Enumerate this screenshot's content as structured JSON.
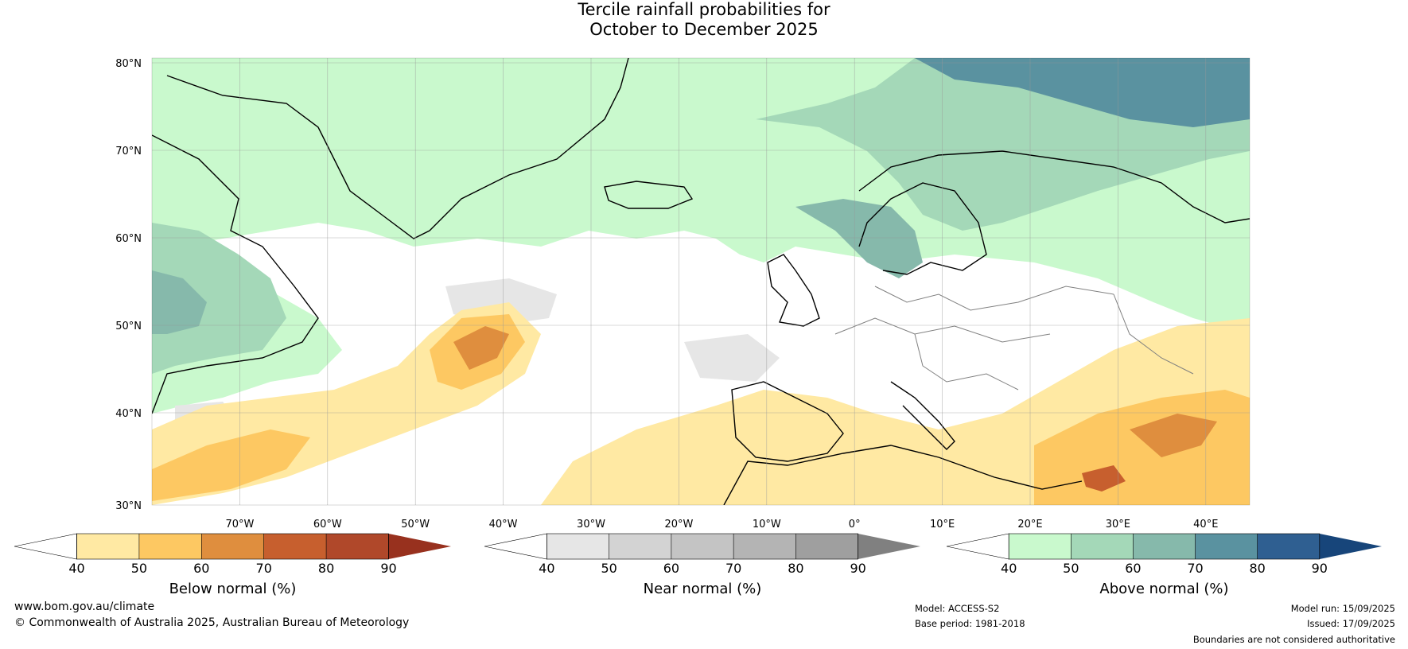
{
  "title": {
    "line1": "Tercile rainfall probabilities for",
    "line2": "October to December 2025"
  },
  "map": {
    "lat_labels": [
      "80°N",
      "70°N",
      "60°N",
      "50°N",
      "40°N",
      "30°N"
    ],
    "lon_labels": [
      "70°W",
      "60°W",
      "50°W",
      "40°W",
      "30°W",
      "20°W",
      "10°W",
      "0°",
      "10°E",
      "20°E",
      "30°E",
      "40°E"
    ],
    "colors": {
      "land_outline": "#000000",
      "borders": "#808080",
      "gridlines": "#999999",
      "blank": "#ffffff"
    }
  },
  "colorbars": [
    {
      "label": "Below normal (%)",
      "ticks": [
        "40",
        "50",
        "60",
        "70",
        "80",
        "90"
      ],
      "colors": [
        "#ffffff",
        "#ffe9a3",
        "#fdc862",
        "#df8e3e",
        "#c75f2e",
        "#b0482a",
        "#98311e"
      ]
    },
    {
      "label": "Near normal (%)",
      "ticks": [
        "40",
        "50",
        "60",
        "70",
        "80",
        "90"
      ],
      "colors": [
        "#ffffff",
        "#e6e6e6",
        "#d3d3d3",
        "#c4c4c4",
        "#b4b4b4",
        "#9f9f9f",
        "#808080"
      ]
    },
    {
      "label": "Above normal (%)",
      "ticks": [
        "40",
        "50",
        "60",
        "70",
        "80",
        "90"
      ],
      "colors": [
        "#ffffff",
        "#c9f9cd",
        "#a4d8b8",
        "#86b9ab",
        "#5a92a0",
        "#2f5f91",
        "#17457a"
      ]
    }
  ],
  "footer": {
    "website": "www.bom.gov.au/climate",
    "copyright": "© Commonwealth of Australia 2025, Australian Bureau of Meteorology",
    "model": "Model: ACCESS-S2",
    "base_period": "Base period: 1981-2018",
    "model_run": "Model run: 15/09/2025",
    "issued": "Issued: 17/09/2025",
    "disclaimer": "Boundaries are not considered authoritative"
  }
}
